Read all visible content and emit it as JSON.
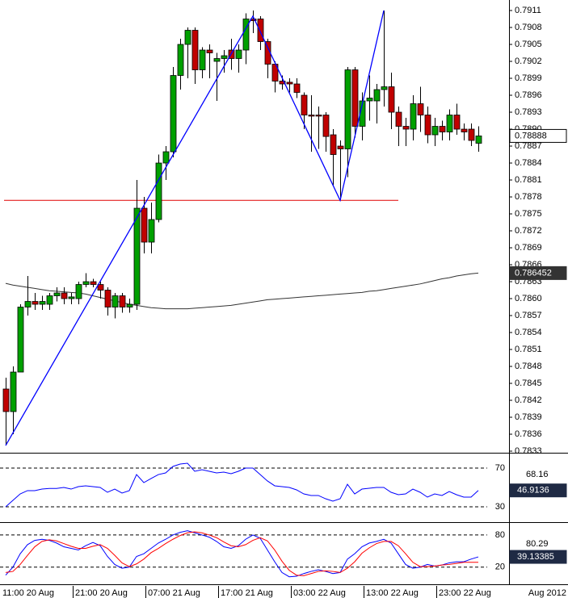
{
  "chart_data": [
    {
      "type": "candlestick",
      "categories": [
        "11:00 20 Aug",
        null,
        null,
        null,
        null,
        null,
        null,
        null,
        null,
        null,
        "21:00 20 Aug",
        null,
        null,
        null,
        null,
        null,
        null,
        null,
        null,
        null,
        "07:00 21 Aug",
        null,
        null,
        null,
        null,
        null,
        null,
        null,
        null,
        null,
        "17:00 21 Aug",
        null,
        null,
        null,
        null,
        null,
        null,
        null,
        null,
        null,
        "03:00 22 Aug",
        null,
        null,
        null,
        null,
        null,
        null,
        null,
        null,
        null,
        "13:00 22 Aug",
        null,
        null,
        null,
        null,
        null,
        null,
        null,
        null,
        null,
        "23:00 22 Aug",
        null,
        null,
        null,
        null,
        null
      ],
      "open": [
        0.7844,
        0.784,
        0.7847,
        0.78585,
        0.78595,
        0.7859,
        0.7859,
        0.78605,
        0.7861,
        0.786,
        0.786,
        0.78625,
        0.7863,
        0.78625,
        0.78615,
        0.78585,
        0.78605,
        0.78585,
        0.7859,
        0.7876,
        0.787,
        0.7874,
        0.7884,
        0.7886,
        0.78995,
        0.7905,
        0.79075,
        0.79005,
        0.7904,
        0.7902,
        0.79025,
        0.7904,
        0.79025,
        0.7904,
        0.79095,
        0.79095,
        0.79055,
        0.79015,
        0.78985,
        0.78983,
        0.7898,
        0.7896,
        0.78925,
        0.78925,
        0.78925,
        0.7889,
        0.7887,
        0.78865,
        0.79005,
        0.78905,
        0.7895,
        0.7895,
        0.7897,
        0.78975,
        0.7893,
        0.78905,
        0.789,
        0.78945,
        0.78925,
        0.7889,
        0.78905,
        0.78895,
        0.78925,
        0.789,
        0.789,
        0.78875
      ],
      "high": [
        0.7846,
        0.7848,
        0.7859,
        0.7864,
        0.7861,
        0.78605,
        0.7861,
        0.7862,
        0.7862,
        0.7861,
        0.7863,
        0.78645,
        0.78635,
        0.7863,
        0.7862,
        0.7861,
        0.7861,
        0.786,
        0.7881,
        0.7878,
        0.7877,
        0.78855,
        0.7887,
        0.7901,
        0.7906,
        0.7908,
        0.7908,
        0.79045,
        0.7905,
        0.79035,
        0.7904,
        0.7906,
        0.7905,
        0.79105,
        0.7911,
        0.791,
        0.7906,
        0.7902,
        0.78995,
        0.7899,
        0.7899,
        0.78965,
        0.7896,
        0.7894,
        0.7893,
        0.789,
        0.7888,
        0.7901,
        0.7901,
        0.78965,
        0.78995,
        0.7898,
        0.7911,
        0.79,
        0.7894,
        0.7892,
        0.7896,
        0.78975,
        0.7894,
        0.7892,
        0.78915,
        0.78935,
        0.78945,
        0.7891,
        0.7891,
        0.78905
      ],
      "low": [
        0.7834,
        0.7836,
        0.7847,
        0.7857,
        0.7858,
        0.7858,
        0.7858,
        0.78595,
        0.7859,
        0.7859,
        0.7859,
        0.7862,
        0.7862,
        0.786,
        0.7857,
        0.78565,
        0.78575,
        0.78575,
        0.7858,
        0.7868,
        0.7868,
        0.78735,
        0.7881,
        0.7885,
        0.7897,
        0.7899,
        0.7898,
        0.7899,
        0.7899,
        0.7895,
        0.79,
        0.79005,
        0.79,
        0.79015,
        0.7907,
        0.7904,
        0.7899,
        0.78965,
        0.7897,
        0.78965,
        0.78955,
        0.789,
        0.7886,
        0.78865,
        0.7886,
        0.788,
        0.78775,
        0.78815,
        0.78885,
        0.7888,
        0.78915,
        0.7891,
        0.7894,
        0.789,
        0.7887,
        0.7887,
        0.7888,
        0.78895,
        0.78875,
        0.7887,
        0.7888,
        0.7888,
        0.7889,
        0.7888,
        0.7887,
        0.7886
      ],
      "close": [
        0.784,
        0.7847,
        0.78585,
        0.78595,
        0.7859,
        0.78595,
        0.78605,
        0.7861,
        0.786,
        0.78603,
        0.78625,
        0.7863,
        0.78625,
        0.78615,
        0.78585,
        0.78605,
        0.78585,
        0.7859,
        0.7876,
        0.787,
        0.7874,
        0.7884,
        0.7886,
        0.78995,
        0.7905,
        0.79075,
        0.79005,
        0.7904,
        0.79035,
        0.79025,
        0.7903,
        0.79025,
        0.7904,
        0.79095,
        0.79092,
        0.79055,
        0.79015,
        0.78985,
        0.7898,
        0.7898,
        0.78965,
        0.78925,
        0.78923,
        0.78923,
        0.78887,
        0.78855,
        0.78865,
        0.79005,
        0.78905,
        0.7895,
        0.78955,
        0.7897,
        0.78975,
        0.7893,
        0.78905,
        0.789,
        0.78945,
        0.78925,
        0.7889,
        0.78905,
        0.78895,
        0.78925,
        0.789,
        0.78895,
        0.7888,
        0.78888
      ],
      "up_color": "#00a000",
      "down_color": "#c00000",
      "ylim": [
        0.783286,
        0.791286
      ],
      "yticks": [
        0.7833,
        0.7836,
        0.7839,
        0.7842,
        0.7845,
        0.7848,
        0.7851,
        0.7854,
        0.7857,
        {
          "value": 0.786,
          "label": "0.7860"
        },
        0.7863,
        0.7866,
        0.7869,
        0.7872,
        0.7875,
        0.7878,
        0.7881,
        0.7884,
        0.7887,
        {
          "value": 0.789,
          "label": "0.7890"
        },
        0.7893,
        0.7896,
        0.7899,
        0.7902,
        0.7905,
        0.7908,
        0.7911
      ],
      "moving_average": {
        "color": "#333333",
        "values": [
          0.78627,
          0.78624,
          0.78622,
          0.7862,
          0.78618,
          0.78616,
          0.78614,
          0.78613,
          0.78612,
          0.78611,
          0.7861,
          0.78608,
          0.78605,
          0.78602,
          0.78599,
          0.78596,
          0.78593,
          0.7859,
          0.78588,
          0.78586,
          0.78584,
          0.78583,
          0.78582,
          0.78582,
          0.78582,
          0.78582,
          0.78583,
          0.78584,
          0.78585,
          0.78586,
          0.78587,
          0.78588,
          0.7859,
          0.78592,
          0.78594,
          0.78596,
          0.78598,
          0.78599,
          0.786,
          0.78601,
          0.78602,
          0.78603,
          0.78604,
          0.78605,
          0.78606,
          0.78607,
          0.78608,
          0.78609,
          0.7861,
          0.78611,
          0.78613,
          0.78614,
          0.78616,
          0.78618,
          0.7862,
          0.78622,
          0.78624,
          0.78626,
          0.78629,
          0.78632,
          0.78635,
          0.78637,
          0.7864,
          0.78642,
          0.78644,
          0.786452
        ]
      },
      "level": {
        "value": 0.78774,
        "color": "#e00000"
      },
      "zigzag": {
        "color": "#0000ff",
        "x": [
          0,
          34,
          46,
          52
        ],
        "y": [
          0.7834,
          0.791,
          0.78774,
          0.7911
        ]
      },
      "corner_label": "Aug 2012"
    },
    {
      "type": "line",
      "ylim": [
        15.8,
        84.2
      ],
      "yticks": [
        30,
        70
      ],
      "corner_label": 68.16,
      "series": [
        {
          "color": "#0000ff",
          "values": [
            30,
            36.7,
            43.3,
            46.7,
            46.7,
            48.3,
            49,
            49,
            50,
            48.3,
            50.8,
            51.7,
            50.8,
            50,
            45,
            48.3,
            44.2,
            46.7,
            63.3,
            55,
            59.2,
            63.3,
            65,
            71.7,
            74.2,
            75,
            66.7,
            68.3,
            66.7,
            65,
            65.8,
            64.2,
            66.7,
            70,
            70,
            63.3,
            56.7,
            51.7,
            50.8,
            50,
            47.5,
            43.3,
            41.7,
            41.7,
            38.3,
            35.8,
            38.3,
            53.3,
            43.3,
            48.3,
            49.2,
            50,
            50,
            45,
            42.5,
            43.3,
            48.3,
            45,
            40,
            43.3,
            41.7,
            45.8,
            42.5,
            40,
            40,
            46.9136
          ]
        }
      ]
    },
    {
      "type": "line",
      "ylim": [
        -9,
        101
      ],
      "yticks": [
        20,
        80
      ],
      "corner_label": 80.29,
      "series": [
        {
          "color": "#0000ff",
          "values": [
            5,
            20,
            45,
            62,
            70,
            72,
            70,
            65,
            58,
            55,
            52,
            60,
            66,
            60,
            40,
            25,
            18,
            20,
            40,
            45,
            55,
            65,
            72,
            80,
            85,
            88,
            84,
            80,
            76,
            68,
            58,
            55,
            60,
            72,
            80,
            74,
            52,
            30,
            10,
            2,
            3,
            8,
            12,
            15,
            12,
            8,
            10,
            35,
            45,
            58,
            65,
            68,
            72,
            65,
            45,
            25,
            18,
            20,
            25,
            22,
            24,
            28,
            30,
            30,
            35,
            39.13385
          ]
        },
        {
          "color": "#ff0000",
          "values": [
            10,
            12,
            25,
            42,
            58,
            68,
            71,
            69,
            64,
            59,
            55,
            55,
            59,
            62,
            55,
            42,
            28,
            21,
            26,
            35,
            47,
            55,
            64,
            72,
            79,
            84,
            86,
            84,
            80,
            75,
            67,
            60,
            58,
            62,
            70,
            75,
            69,
            52,
            31,
            14,
            5,
            4,
            8,
            12,
            13,
            12,
            10,
            18,
            30,
            46,
            56,
            64,
            68,
            68,
            60,
            45,
            29,
            21,
            21,
            22,
            24,
            25,
            27,
            29,
            29,
            29
          ]
        }
      ]
    }
  ]
}
